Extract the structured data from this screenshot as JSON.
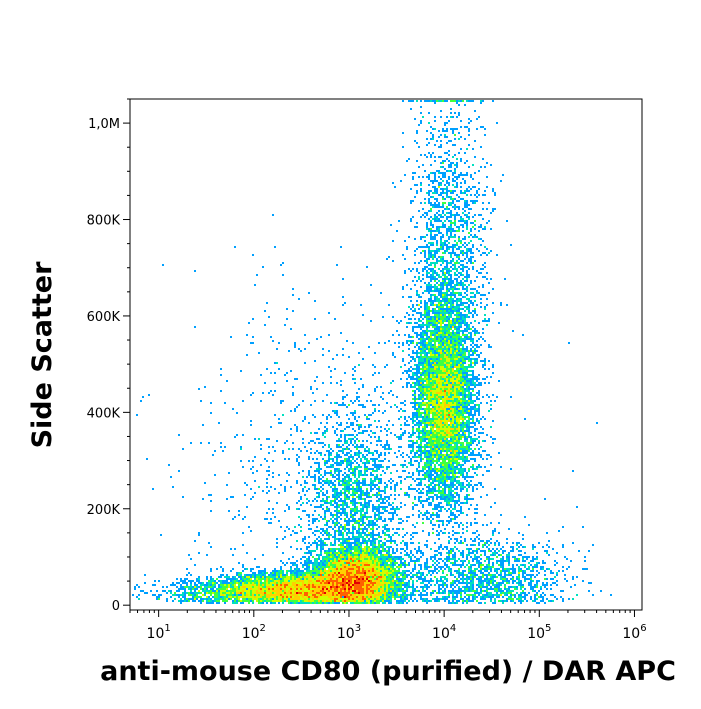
{
  "chart_data": {
    "type": "scatter",
    "style": "density-dot-plot",
    "xlabel": "anti-mouse CD80 (purified) / DAR APC",
    "ylabel": "Side Scatter",
    "xscale": "log",
    "xlim": [
      5,
      1200000
    ],
    "ylim": [
      -10000,
      1050000
    ],
    "x_ticks": [
      {
        "base": "10",
        "exp": "1",
        "value": 10
      },
      {
        "base": "10",
        "exp": "2",
        "value": 100
      },
      {
        "base": "10",
        "exp": "3",
        "value": 1000
      },
      {
        "base": "10",
        "exp": "4",
        "value": 10000
      },
      {
        "base": "10",
        "exp": "5",
        "value": 100000
      },
      {
        "base": "10",
        "exp": "6",
        "value": 1000000
      }
    ],
    "y_ticks": [
      {
        "label": "0",
        "value": 0
      },
      {
        "label": "200K",
        "value": 200000
      },
      {
        "label": "400K",
        "value": 400000
      },
      {
        "label": "600K",
        "value": 600000
      },
      {
        "label": "800K",
        "value": 800000
      },
      {
        "label": "1,0M",
        "value": 1000000
      }
    ],
    "grid": false,
    "legend": "none",
    "colormap": [
      "#0000ff",
      "#00a0ff",
      "#00e0c0",
      "#40ff40",
      "#d0ff00",
      "#ffd000",
      "#ff6000",
      "#e00000"
    ],
    "populations": [
      {
        "x_center": 1200,
        "x_spread_decades": 0.22,
        "y_center": 60000,
        "y_spread": 30000,
        "weight": 0.22
      },
      {
        "x_center": 400,
        "x_spread_decades": 0.45,
        "y_center": 35000,
        "y_spread": 18000,
        "weight": 0.2
      },
      {
        "x_center": 100,
        "x_spread_decades": 0.45,
        "y_center": 28000,
        "y_spread": 14000,
        "weight": 0.06
      },
      {
        "x_center": 10000,
        "x_spread_decades": 0.16,
        "y_center": 420000,
        "y_spread": 110000,
        "weight": 0.26
      },
      {
        "x_center": 11000,
        "x_spread_decades": 0.2,
        "y_center": 700000,
        "y_spread": 180000,
        "weight": 0.08
      },
      {
        "x_center": 1100,
        "x_spread_decades": 0.25,
        "y_center": 220000,
        "y_spread": 90000,
        "weight": 0.07
      },
      {
        "x_center": 30000,
        "x_spread_decades": 0.4,
        "y_center": 60000,
        "y_spread": 40000,
        "weight": 0.06
      },
      {
        "x_center": 1000,
        "x_spread_decades": 0.9,
        "y_center": 250000,
        "y_spread": 200000,
        "weight": 0.05
      }
    ]
  }
}
